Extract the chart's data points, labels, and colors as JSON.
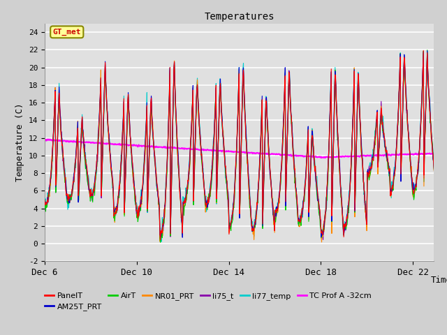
{
  "title": "Temperatures",
  "xlabel": "Time",
  "ylabel": "Temperature (C)",
  "ylim": [
    -2,
    25
  ],
  "yticks": [
    -2,
    0,
    2,
    4,
    6,
    8,
    10,
    12,
    14,
    16,
    18,
    20,
    22,
    24
  ],
  "xtick_labels": [
    "Dec 6",
    "Dec 10",
    "Dec 14",
    "Dec 18",
    "Dec 22"
  ],
  "xtick_positions": [
    0,
    4,
    8,
    12,
    16
  ],
  "series_colors": {
    "PanelT": "#ff0000",
    "AM25T_PRT": "#0000cc",
    "AirT": "#00cc00",
    "NR01_PRT": "#ff8800",
    "li75_t": "#8800aa",
    "li77_temp": "#00cccc",
    "TC Prof A -32cm": "#ff00ff"
  },
  "annotation_text": "GT_met",
  "annotation_box_color": "#ffff99",
  "annotation_box_edge": "#888800",
  "annotation_text_color": "#cc0000",
  "fig_bg_color": "#d0d0d0",
  "plot_bg_color": "#e0e0e0",
  "grid_color": "#ffffff",
  "n_days": 17
}
